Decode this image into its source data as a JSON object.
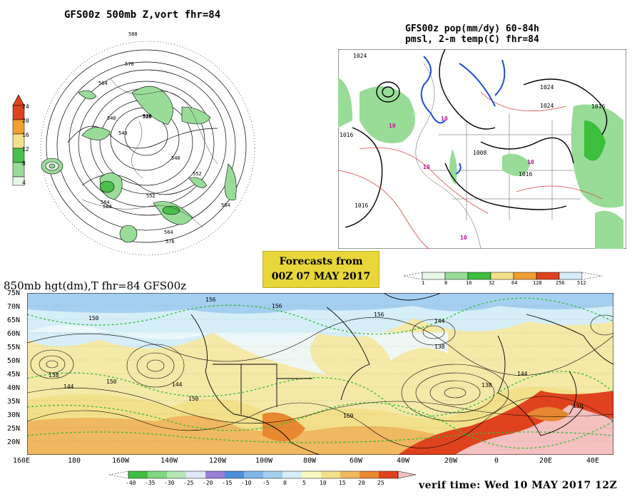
{
  "panel_500mb": {
    "title": "GFS00z  500mb Z,vort   fhr=84",
    "colorbar_ticks": [
      "24",
      "20",
      "16",
      "12",
      "8",
      "4"
    ],
    "colorbar_colors": [
      "#e0421e",
      "#f0a030",
      "#f3e08a",
      "#4bbf4b",
      "#98dc98",
      "#e8f8e8"
    ],
    "contour_labels": [
      "588",
      "576",
      "564",
      "540",
      "528",
      "540",
      "552",
      "564",
      "576",
      "564",
      "564",
      "552",
      "540",
      "528",
      "564"
    ]
  },
  "panel_precip": {
    "title_line1": "GFS00z pop(mm/dy) 60-84h",
    "title_line2": "pmsl, 2-m temp(C)  fhr=84",
    "colorbar_ticks": [
      "1",
      "8",
      "16",
      "32",
      "64",
      "128",
      "256",
      "512"
    ],
    "colorbar_colors": [
      "#e8f8e8",
      "#98dc98",
      "#3cbf3c",
      "#f3e08a",
      "#f0a030",
      "#e0421e",
      "#ffffff"
    ],
    "isobar_labels": [
      "1024",
      "1016",
      "1008",
      "1024",
      "1016",
      "1016",
      "1024",
      "1016"
    ],
    "temp_labels": [
      "10",
      "10",
      "10",
      "10",
      "10"
    ]
  },
  "forecast_box": {
    "line1": "Forecasts from",
    "line2": "00Z 07 MAY 2017"
  },
  "panel_850mb": {
    "title": "850mb hgt(dm),T  fhr=84 GFS00z",
    "lat_labels": [
      "75N",
      "70N",
      "65N",
      "60N",
      "55N",
      "50N",
      "45N",
      "40N",
      "35N",
      "30N",
      "25N",
      "20N"
    ],
    "lon_labels": [
      "160E",
      "180",
      "160W",
      "140W",
      "120W",
      "100W",
      "80W",
      "60W",
      "40W",
      "20W",
      "0",
      "20E",
      "40E"
    ],
    "height_labels": [
      "150",
      "156",
      "156",
      "144",
      "138",
      "144",
      "150",
      "144",
      "138",
      "150",
      "138",
      "150",
      "144",
      "160",
      "156"
    ],
    "colorbar_ticks": [
      "-40",
      "-35",
      "-30",
      "-25",
      "-20",
      "-15",
      "-10",
      "-5",
      "0",
      "5",
      "10",
      "15",
      "20",
      "25"
    ],
    "colorbar_colors": [
      "#3fbf3f",
      "#7fd77f",
      "#b5e8b5",
      "#dfe8f8",
      "#9a7fd8",
      "#4a8fd8",
      "#7fb5e8",
      "#a5cff0",
      "#d5eef8",
      "#f8f8c0",
      "#f3e08a",
      "#f0b860",
      "#e88830",
      "#e0421e",
      "#f4c0c0"
    ],
    "verif_time": "verif time: Wed 10 MAY 2017 12Z"
  }
}
